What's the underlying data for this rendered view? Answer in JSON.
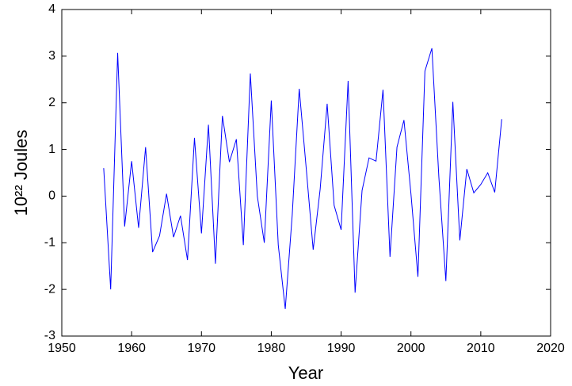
{
  "chart_data": {
    "type": "line",
    "xlabel": "Year",
    "ylabel": "10²² Joules",
    "x": [
      1956,
      1957,
      1958,
      1959,
      1960,
      1961,
      1962,
      1963,
      1964,
      1965,
      1966,
      1967,
      1968,
      1969,
      1970,
      1971,
      1972,
      1973,
      1974,
      1975,
      1976,
      1977,
      1978,
      1979,
      1980,
      1981,
      1982,
      1983,
      1984,
      1985,
      1986,
      1987,
      1988,
      1989,
      1990,
      1991,
      1992,
      1993,
      1994,
      1995,
      1996,
      1997,
      1998,
      1999,
      2000,
      2001,
      2002,
      2003,
      2004,
      2005,
      2006,
      2007,
      2008,
      2009,
      2010,
      2011,
      2012,
      2013
    ],
    "series": [
      {
        "color": "#0000ff",
        "values": [
          0.6,
          -2.0,
          3.07,
          -0.65,
          0.75,
          -0.68,
          1.05,
          -1.2,
          -0.85,
          0.05,
          -0.88,
          -0.42,
          -1.37,
          1.25,
          -0.8,
          1.53,
          -1.45,
          1.72,
          0.73,
          1.22,
          -1.05,
          2.63,
          0.0,
          -1.0,
          2.05,
          -1.05,
          -2.42,
          -0.4,
          2.3,
          0.6,
          -1.15,
          0.15,
          1.98,
          -0.2,
          -0.72,
          2.47,
          -2.07,
          0.12,
          0.82,
          0.75,
          2.28,
          -1.3,
          1.05,
          1.63,
          0.05,
          -1.73,
          2.68,
          3.17,
          0.4,
          -1.82,
          2.02,
          -0.95,
          0.58,
          0.07,
          0.25,
          0.5,
          0.08,
          1.65
        ]
      }
    ],
    "xlim": [
      1950,
      2020
    ],
    "xticks": [
      1950,
      1960,
      1970,
      1980,
      1990,
      2000,
      2010,
      2020
    ],
    "ylim": [
      -3,
      4
    ],
    "yticks": [
      -3,
      -2,
      -1,
      0,
      1,
      2,
      3,
      4
    ]
  }
}
